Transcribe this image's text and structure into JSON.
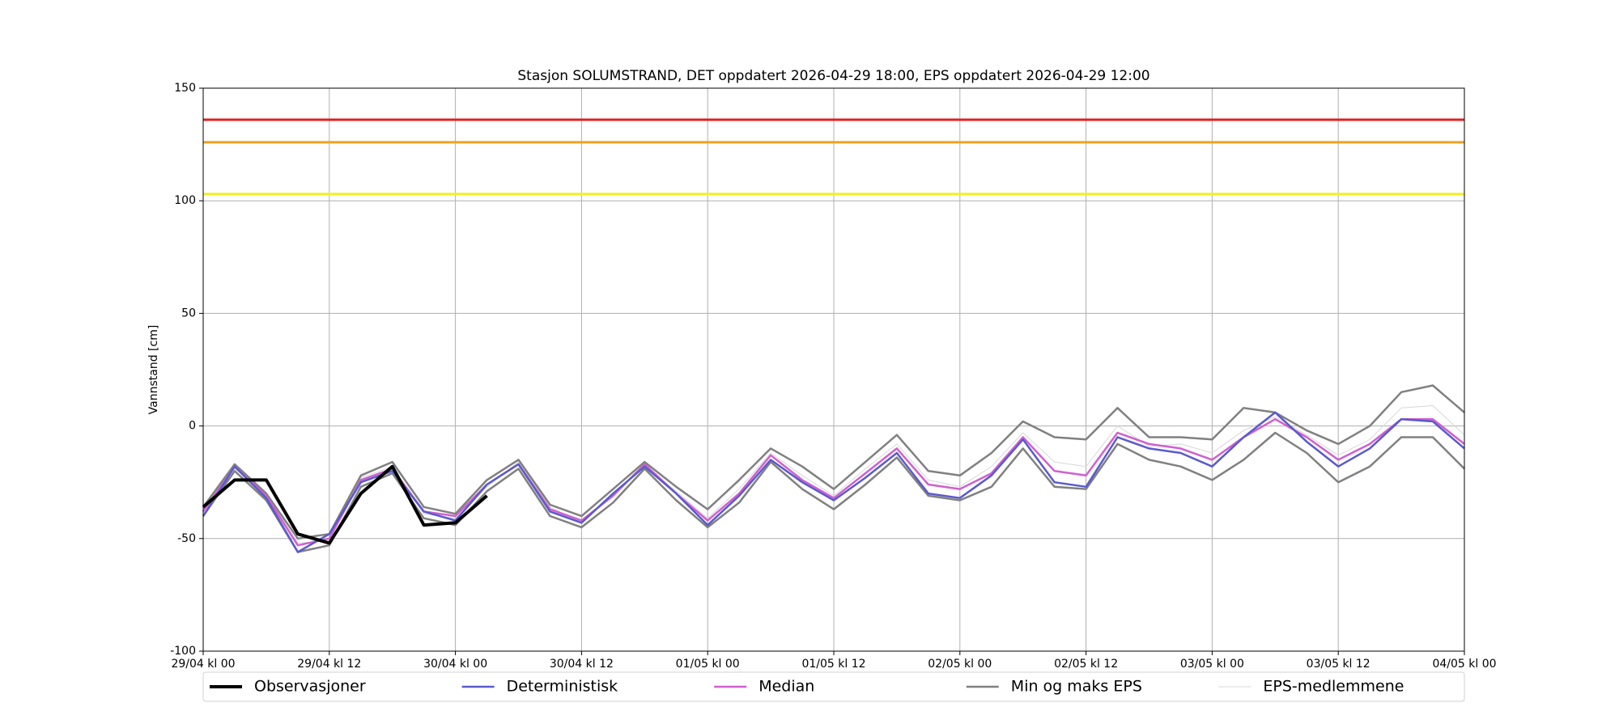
{
  "chart_data": {
    "type": "line",
    "title": "Stasjon SOLUMSTRAND, DET oppdatert 2026-04-29 18:00, EPS oppdatert 2026-04-29 12:00",
    "ylabel": "Vannstand [cm]",
    "x": [
      0,
      3,
      6,
      9,
      12,
      15,
      18,
      21,
      24,
      27,
      30,
      33,
      36,
      39,
      42,
      45,
      48,
      51,
      54,
      57,
      60,
      63,
      66,
      69,
      72,
      75,
      78,
      81,
      84,
      87,
      90,
      93,
      96,
      99,
      102,
      105,
      108,
      111,
      114,
      117,
      120
    ],
    "xlim": [
      0,
      120
    ],
    "xticks": [
      {
        "value": 0,
        "label": "29/04 kl 00"
      },
      {
        "value": 12,
        "label": "29/04 kl 12"
      },
      {
        "value": 24,
        "label": "30/04 kl 00"
      },
      {
        "value": 36,
        "label": "30/04 kl 12"
      },
      {
        "value": 48,
        "label": "01/05 kl 00"
      },
      {
        "value": 60,
        "label": "01/05 kl 12"
      },
      {
        "value": 72,
        "label": "02/05 kl 00"
      },
      {
        "value": 84,
        "label": "02/05 kl 12"
      },
      {
        "value": 96,
        "label": "03/05 kl 00"
      },
      {
        "value": 108,
        "label": "03/05 kl 12"
      },
      {
        "value": 120,
        "label": "04/05 kl 00"
      }
    ],
    "ylim": [
      -100,
      150
    ],
    "yticks": [
      -100,
      -50,
      0,
      50,
      100,
      150
    ],
    "grid": true,
    "legend": "bottom",
    "thresholds": [
      {
        "value": 136,
        "color": "#e02020"
      },
      {
        "value": 126,
        "color": "#f0a020"
      },
      {
        "value": 103,
        "color": "#f0f020"
      }
    ],
    "series": [
      {
        "name": "Observasjoner",
        "color": "#000000",
        "width": 4,
        "values": [
          -36,
          -24,
          -24,
          -48,
          -52,
          -30,
          -18,
          -44,
          -43,
          -31,
          null,
          null,
          null,
          null,
          null,
          null,
          null,
          null,
          null,
          null,
          null,
          null,
          null,
          null,
          null,
          null,
          null,
          null,
          null,
          null,
          null,
          null,
          null,
          null,
          null,
          null,
          null,
          null,
          null,
          null,
          null
        ]
      },
      {
        "name": "Deterministisk",
        "color": "#5a5acd",
        "width": 2.5,
        "values": [
          -40,
          -18,
          -32,
          -56,
          -48,
          -25,
          -20,
          -38,
          -42,
          -26,
          -17,
          -38,
          -43,
          -30,
          -18,
          -30,
          -44,
          -31,
          -15,
          -25,
          -33,
          -23,
          -12,
          -30,
          -32,
          -22,
          -6,
          -25,
          -27,
          -5,
          -10,
          -12,
          -18,
          -5,
          6,
          -7,
          -18,
          -10,
          3,
          2,
          -10
        ]
      },
      {
        "name": "Median",
        "color": "#d060d0",
        "width": 2.5,
        "values": [
          -38,
          -18,
          -31,
          -53,
          -50,
          -24,
          -19,
          -38,
          -40,
          -26,
          -17,
          -37,
          -42,
          -31,
          -17,
          -30,
          -42,
          -30,
          -13,
          -24,
          -32,
          -21,
          -10,
          -26,
          -28,
          -21,
          -5,
          -20,
          -22,
          -3,
          -8,
          -10,
          -15,
          -5,
          3,
          -5,
          -15,
          -8,
          3,
          3,
          -8
        ]
      },
      {
        "name": "Min og maks EPS",
        "color": "#808080",
        "width": 2.5,
        "values": [
          -40,
          -20,
          -33,
          -56,
          -53,
          -27,
          -21,
          -41,
          -44,
          -29,
          -19,
          -40,
          -45,
          -34,
          -19,
          -33,
          -45,
          -34,
          -16,
          -28,
          -37,
          -26,
          -14,
          -31,
          -33,
          -27,
          -10,
          -27,
          -28,
          -8,
          -15,
          -18,
          -24,
          -15,
          -3,
          -12,
          -25,
          -18,
          -5,
          -5,
          -19
        ],
        "upper": [
          -36,
          -17,
          -30,
          -50,
          -48,
          -22,
          -16,
          -36,
          -39,
          -24,
          -15,
          -35,
          -40,
          -28,
          -16,
          -27,
          -37,
          -24,
          -10,
          -18,
          -28,
          -16,
          -4,
          -20,
          -22,
          -12,
          2,
          -5,
          -6,
          8,
          -5,
          -5,
          -6,
          8,
          6,
          -2,
          -8,
          0,
          15,
          18,
          6
        ]
      },
      {
        "name": "EPS-medlemmene",
        "color": "#d8d8d8",
        "width": 1,
        "values": [
          -37,
          -19,
          -30,
          -52,
          -51,
          -23,
          -18,
          -39,
          -41,
          -27,
          -16,
          -36,
          -43,
          -30,
          -18,
          -29,
          -41,
          -28,
          -12,
          -22,
          -31,
          -19,
          -8,
          -24,
          -27,
          -18,
          -3,
          -16,
          -18,
          0,
          -9,
          -8,
          -12,
          -2,
          4,
          -4,
          -13,
          -6,
          8,
          9,
          -4
        ]
      }
    ]
  }
}
